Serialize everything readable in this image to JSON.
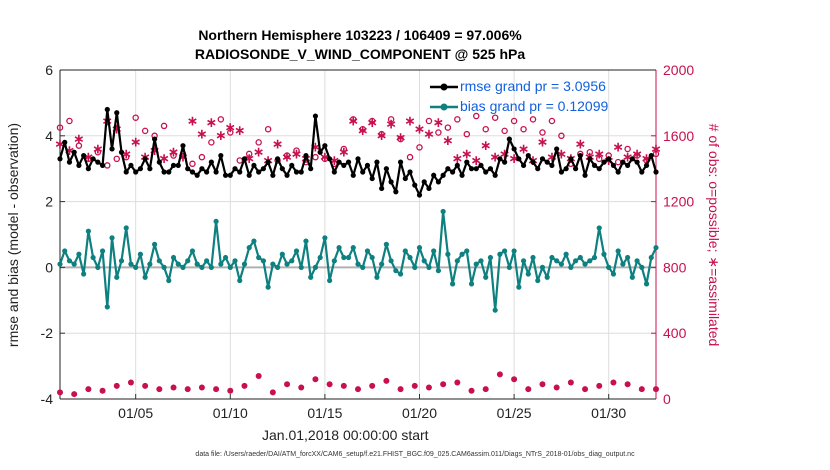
{
  "title": {
    "line1": "Northern Hemisphere 103223 / 106409 = 97.006%",
    "line2": "RADIOSONDE_V_WIND_COMPONENT @ 525 hPa"
  },
  "axes": {
    "ylabel_left": "rmse and bias (model - observation)",
    "ylabel_right": "# of obs: o=possible; ∗=assimilated",
    "xlabel": "Jan.01,2018 00:00:00 start",
    "left_ticks": [
      "6",
      "4",
      "2",
      "0",
      "-2",
      "-4"
    ],
    "right_ticks": [
      "2000",
      "1600",
      "1200",
      "800",
      "400",
      "0"
    ],
    "x_ticks": [
      "01/05",
      "01/10",
      "01/15",
      "01/20",
      "01/25",
      "01/30"
    ]
  },
  "legend": {
    "rmse": "rmse grand pr = 3.0956",
    "bias": "bias grand pr = 0.12099"
  },
  "footer": "data file: /Users/raeder/DAI/ATM_forcXX/CAM6_setup/f.e21.FHIST_BGC.f09_025.CAM6assim.011/Diags_NTrS_2018-01/obs_diag_output.nc",
  "colors": {
    "rmse": "#000000",
    "bias": "#0f8080",
    "obs": "#c8104e",
    "zero_line": "#b0b0b0",
    "grid": "#dddddd",
    "legend_text": "#1060e0"
  },
  "chart_data": {
    "type": "line",
    "title": "Northern Hemisphere 103223 / 106409 = 97.006% — RADIOSONDE_V_WIND_COMPONENT @ 525 hPa",
    "xlabel": "Jan.01,2018 00:00:00 start",
    "ylabel": "rmse and bias (model - observation)",
    "y2label": "# of obs: o=possible; ∗=assimilated",
    "xlim": [
      1,
      32.5
    ],
    "ylim": [
      -4,
      6
    ],
    "y2lim": [
      0,
      2000
    ],
    "grid": true,
    "legend_position": "top-right",
    "x_start": 1.0,
    "x_step": 0.25,
    "series": [
      {
        "name": "rmse grand pr = 3.0956",
        "axis": "left",
        "values": [
          3.3,
          3.8,
          3.2,
          3.5,
          3.1,
          3.4,
          3.0,
          3.3,
          3.2,
          3.1,
          4.8,
          3.6,
          4.7,
          3.5,
          2.9,
          3.1,
          2.9,
          3.0,
          3.3,
          3.0,
          3.9,
          3.2,
          2.9,
          2.9,
          3.1,
          3.1,
          3.7,
          3.0,
          2.9,
          2.8,
          3.0,
          2.9,
          3.2,
          2.9,
          3.4,
          2.8,
          2.8,
          3.0,
          2.9,
          3.3,
          2.8,
          3.1,
          2.9,
          3.0,
          3.2,
          2.8,
          3.3,
          3.0,
          2.8,
          3.1,
          2.9,
          2.9,
          3.4,
          3.0,
          4.6,
          3.5,
          3.7,
          3.3,
          2.9,
          3.2,
          3.1,
          3.2,
          2.8,
          3.3,
          2.9,
          3.1,
          2.7,
          3.2,
          2.4,
          3.0,
          2.6,
          2.3,
          3.2,
          2.7,
          2.9,
          2.5,
          2.2,
          2.6,
          2.4,
          2.8,
          2.6,
          2.8,
          3.0,
          2.9,
          3.1,
          2.8,
          3.2,
          3.0,
          3.0,
          3.1,
          2.9,
          3.0,
          2.8,
          3.3,
          3.2,
          3.9,
          3.6,
          3.3,
          3.1,
          3.4,
          3.2,
          3.0,
          3.3,
          3.2,
          3.1,
          3.6,
          2.9,
          3.0,
          3.3,
          3.0,
          3.4,
          2.8,
          3.3,
          3.1,
          3.0,
          3.2,
          3.3,
          3.1,
          2.9,
          3.2,
          3.1,
          3.3,
          3.2,
          2.9,
          3.1,
          3.4,
          2.9,
          3.2,
          2.8,
          3.1,
          3.0,
          3.2,
          3.1,
          3.3,
          2.8,
          3.1,
          3.3,
          3.0,
          3.2,
          3.3,
          2.9,
          3.3,
          3.2,
          2.9,
          3.9,
          2.9,
          3.3,
          3.1,
          3.0,
          3.2,
          2.8,
          3.0,
          2.6,
          3.1,
          3.2,
          3.1,
          3.0,
          3.2,
          3.1,
          3.2,
          3.0,
          3.1,
          3.2,
          3.3,
          2.9,
          3.0,
          3.2,
          3.1,
          2.9,
          3.3,
          3.0,
          3.2,
          3.1,
          3.0,
          2.9,
          3.1,
          3.3,
          3.2,
          3.1,
          3.9,
          3.3,
          3.1,
          3.0,
          3.2,
          3.1,
          2.9,
          3.3,
          3.0,
          3.1,
          3.2,
          2.9,
          3.1,
          2.8,
          3.3,
          3.0,
          3.1,
          2.8,
          3.2,
          2.7,
          3.6,
          3.0,
          2.8,
          3.3,
          3.1
        ]
      },
      {
        "name": "bias grand pr = 0.12099",
        "axis": "left",
        "values": [
          0.1,
          0.5,
          0.2,
          0.1,
          0.4,
          -0.2,
          1.1,
          0.3,
          0.0,
          0.5,
          -1.2,
          0.9,
          -0.3,
          0.2,
          1.2,
          0.1,
          0.0,
          0.4,
          -0.3,
          0.1,
          0.7,
          0.2,
          0.0,
          -0.4,
          0.3,
          0.1,
          0.0,
          0.2,
          0.5,
          0.1,
          0.0,
          0.2,
          0.0,
          1.4,
          0.1,
          0.3,
          0.0,
          0.2,
          -0.4,
          0.1,
          0.6,
          0.8,
          0.3,
          0.2,
          -0.6,
          0.1,
          0.0,
          0.4,
          0.1,
          0.2,
          0.5,
          0.0,
          0.8,
          -0.3,
          0.0,
          0.3,
          0.9,
          -0.4,
          0.2,
          0.6,
          0.3,
          0.3,
          0.6,
          0.1,
          0.0,
          0.5,
          0.3,
          -0.3,
          0.1,
          0.7,
          0.2,
          -0.1,
          -0.2,
          0.5,
          0.3,
          0.0,
          0.6,
          0.2,
          0.0,
          0.5,
          -0.1,
          1.7,
          0.4,
          -0.5,
          0.2,
          0.4,
          0.5,
          -0.5,
          0.1,
          0.2,
          -0.3,
          0.3,
          -1.3,
          0.4,
          0.5,
          0.0,
          0.5,
          -0.6,
          0.2,
          -0.2,
          0.3,
          -0.4,
          0.0,
          -0.3,
          0.3,
          0.2,
          0.1,
          0.4,
          0.0,
          0.2,
          0.3,
          0.1,
          0.2,
          0.3,
          1.2,
          0.4,
          0.0,
          -0.2,
          0.5,
          0.1,
          0.3,
          -0.3,
          0.2,
          0.0,
          -0.5,
          0.3,
          0.6,
          0.0,
          -0.2,
          0.5,
          0.1,
          0.2,
          0.0,
          -0.4,
          0.2,
          0.3,
          0.1,
          0.4,
          0.7,
          0.0,
          0.2,
          0.1,
          0.3,
          0.0,
          0.4,
          0.2,
          0.1,
          0.6,
          0.0,
          0.3,
          -0.2,
          0.4,
          -0.2,
          0.3,
          -0.4,
          0.2,
          0.0,
          0.3,
          -0.3,
          0.2,
          0.3,
          0.5,
          -0.7,
          0.1,
          -0.3,
          0.4,
          0.0,
          -0.9,
          0.1,
          -0.2,
          0.3,
          0.9,
          0.0,
          0.4,
          0.2,
          0.3,
          0.1,
          -0.5,
          0.2,
          0.5,
          -0.1,
          -0.8,
          0.3,
          0.0,
          -0.4,
          0.1,
          0.1,
          1.6,
          0.6,
          0.3,
          -0.3,
          1.7,
          -0.8,
          0.1,
          0.6,
          0.0,
          0.2,
          0.3,
          -0.5,
          0.1,
          0.2,
          0.0,
          0.0,
          0.2,
          -0.8
        ]
      },
      {
        "name": "# obs possible (o)",
        "axis": "right",
        "values": [
          1650,
          1440,
          1690,
          1500,
          1540,
          1680,
          1460,
          1640,
          1500,
          1590,
          1420,
          1700,
          1460,
          1660,
          1470,
          1550,
          1710,
          1450,
          1630,
          1460,
          1600,
          1430,
          1660,
          1520,
          1480,
          1640,
          1490,
          1690,
          1430,
          1610,
          1470,
          1640,
          1560,
          1440,
          1700,
          1500,
          1620,
          1720,
          1450,
          1650,
          1490,
          1680,
          1560,
          1430,
          1640,
          1740,
          1450,
          1600,
          1480,
          1640,
          1510,
          1700,
          1440,
          1620,
          1470,
          1660,
          1460,
          1680,
          1430,
          1620,
          1520,
          1440,
          1700,
          1500,
          1640,
          1470,
          1690,
          1450,
          1610,
          1490,
          1700,
          1440,
          1580,
          1680,
          1470,
          1630,
          1530,
          1420,
          1690,
          1480,
          1620,
          1470,
          1650,
          1430,
          1700,
          1500,
          1610,
          1450,
          1720,
          1450,
          1640,
          1500,
          1710,
          1470,
          1630,
          1430,
          1690,
          1500,
          1640,
          1460,
          1700,
          1520,
          1620,
          1450,
          1690,
          1480,
          1600,
          1660,
          1430,
          1680,
          1490,
          1640,
          1500,
          1700,
          1460,
          1620,
          1480,
          1690,
          1440,
          1640,
          1520,
          1600,
          1480,
          1700,
          1450,
          1620,
          1490,
          1670,
          1430,
          1650,
          1500,
          1690,
          1460,
          1640,
          1480,
          1700,
          1440,
          1620,
          1510,
          1670,
          1450,
          1630,
          1480,
          1690,
          1460,
          1640,
          1500,
          1700,
          1470,
          1620,
          1480,
          1660,
          1440,
          1690,
          1500,
          1640,
          1460,
          1700,
          1480,
          1620,
          1520,
          1680,
          1430,
          1650,
          1490,
          1700,
          1460,
          1620,
          1480,
          1690,
          1440,
          1640,
          1510,
          1670,
          1450,
          1630,
          1480,
          1690,
          1460,
          1640,
          1500,
          1700,
          1470,
          1620,
          1480,
          1660,
          1440,
          1690,
          1500,
          1640,
          1840,
          1460,
          1700,
          1480,
          1620,
          1520,
          1680,
          1430,
          1650,
          1490,
          1600
        ]
      },
      {
        "name": "# obs assimilated (∗)",
        "axis": "right",
        "values": [
          1560,
          1710,
          1520,
          1640,
          1590,
          1740,
          1480,
          1680,
          1530,
          1610,
          1700,
          1490,
          1650,
          1760,
          1500,
          1620,
          1570,
          1740,
          1480,
          1640,
          1520,
          1600,
          1470,
          1700,
          1510,
          1650,
          1480,
          1560,
          1700,
          1490,
          1620,
          1540,
          1690,
          1460,
          1610,
          1500,
          1660,
          1480,
          1640,
          1700,
          1470,
          1620,
          1510,
          1680,
          1460,
          1600,
          1560,
          1720,
          1480,
          1640,
          1500,
          1680,
          1470,
          1590,
          1540,
          1700,
          1480,
          1620,
          1460,
          1680,
          1510,
          1580,
          1700,
          1470,
          1640,
          1500,
          1690,
          1460,
          1610,
          1530,
          1680,
          1480,
          1600,
          1560,
          1700,
          1470,
          1650,
          1500,
          1620,
          1460,
          1690,
          1510,
          1580,
          1720,
          1470,
          1640,
          1500,
          1680,
          1460,
          1600,
          1550,
          1700,
          1480,
          1640,
          1500,
          1690,
          1470,
          1610,
          1530,
          1680,
          1460,
          1620,
          1570,
          1700,
          1480,
          1650,
          1500,
          1690,
          1470,
          1600,
          1560,
          1710,
          1480,
          1640,
          1500,
          1680,
          1460,
          1620,
          1540,
          1700,
          1480,
          1650,
          1500,
          1690,
          1470,
          1610,
          1530,
          1680,
          1460,
          1620,
          1570,
          1700,
          1480,
          1650,
          1500,
          1690,
          1470,
          1600,
          1560,
          1710,
          1480,
          1640,
          1500,
          1680,
          1460,
          1620,
          1540,
          1700,
          1480,
          1650,
          1500,
          1690,
          1470,
          1610,
          1530,
          1680,
          1460,
          1620,
          1570,
          1700,
          1480,
          1650,
          1500,
          1690,
          1470,
          1600,
          1560,
          1710,
          1480,
          1640,
          1500,
          1680,
          1460,
          1620,
          1540,
          1700,
          1480,
          1650,
          1500,
          1690,
          1470,
          1610,
          1530,
          1680,
          1460,
          1620,
          1570,
          1700,
          1480,
          1650,
          1500,
          1690,
          1470,
          1600,
          1560,
          1710,
          1480,
          1640,
          1500,
          1680,
          1460,
          1620,
          1540
        ]
      },
      {
        "name": "# obs (bottom markers)",
        "axis": "right",
        "values": [
          40,
          70,
          60,
          30,
          70,
          50,
          60,
          90,
          70,
          50,
          100,
          60,
          80,
          110,
          90,
          100,
          70,
          110,
          80,
          90,
          100,
          60,
          80,
          90,
          70,
          100,
          80,
          60,
          90,
          50,
          70,
          90,
          80,
          60,
          40,
          70,
          50,
          30,
          60,
          80,
          50,
          70,
          140,
          60,
          110,
          40,
          80,
          120,
          90,
          60,
          100,
          70,
          140,
          70,
          120,
          80,
          60,
          90,
          170,
          110,
          80,
          60,
          150,
          60,
          100,
          50,
          80,
          100,
          60,
          110,
          80,
          130,
          60,
          90,
          40,
          80,
          60,
          110,
          70,
          120,
          60,
          90,
          70,
          50,
          100,
          60,
          80,
          50,
          70,
          130,
          60,
          110,
          80,
          150,
          60,
          70,
          120,
          100,
          80,
          60,
          80,
          120,
          90,
          60,
          110,
          70,
          80,
          60,
          100,
          70,
          120,
          60,
          90,
          60,
          80,
          110,
          60,
          100,
          80,
          60,
          90,
          70,
          80,
          60,
          100,
          70,
          60,
          80,
          110,
          60,
          90,
          70,
          100,
          80,
          60,
          90,
          70,
          80,
          60,
          100,
          70,
          60,
          110,
          80,
          60,
          90,
          70,
          100,
          80,
          60,
          90,
          80,
          70,
          110,
          60,
          90,
          70,
          100,
          80,
          60,
          90,
          70,
          80,
          60,
          100,
          70,
          60,
          110,
          80,
          90,
          60,
          100,
          70,
          80,
          60,
          90,
          70,
          80,
          100,
          60,
          110,
          80,
          70,
          100,
          60,
          90,
          80,
          110,
          70,
          100,
          80,
          60,
          90,
          110,
          70,
          100,
          120,
          0
        ]
      }
    ]
  }
}
